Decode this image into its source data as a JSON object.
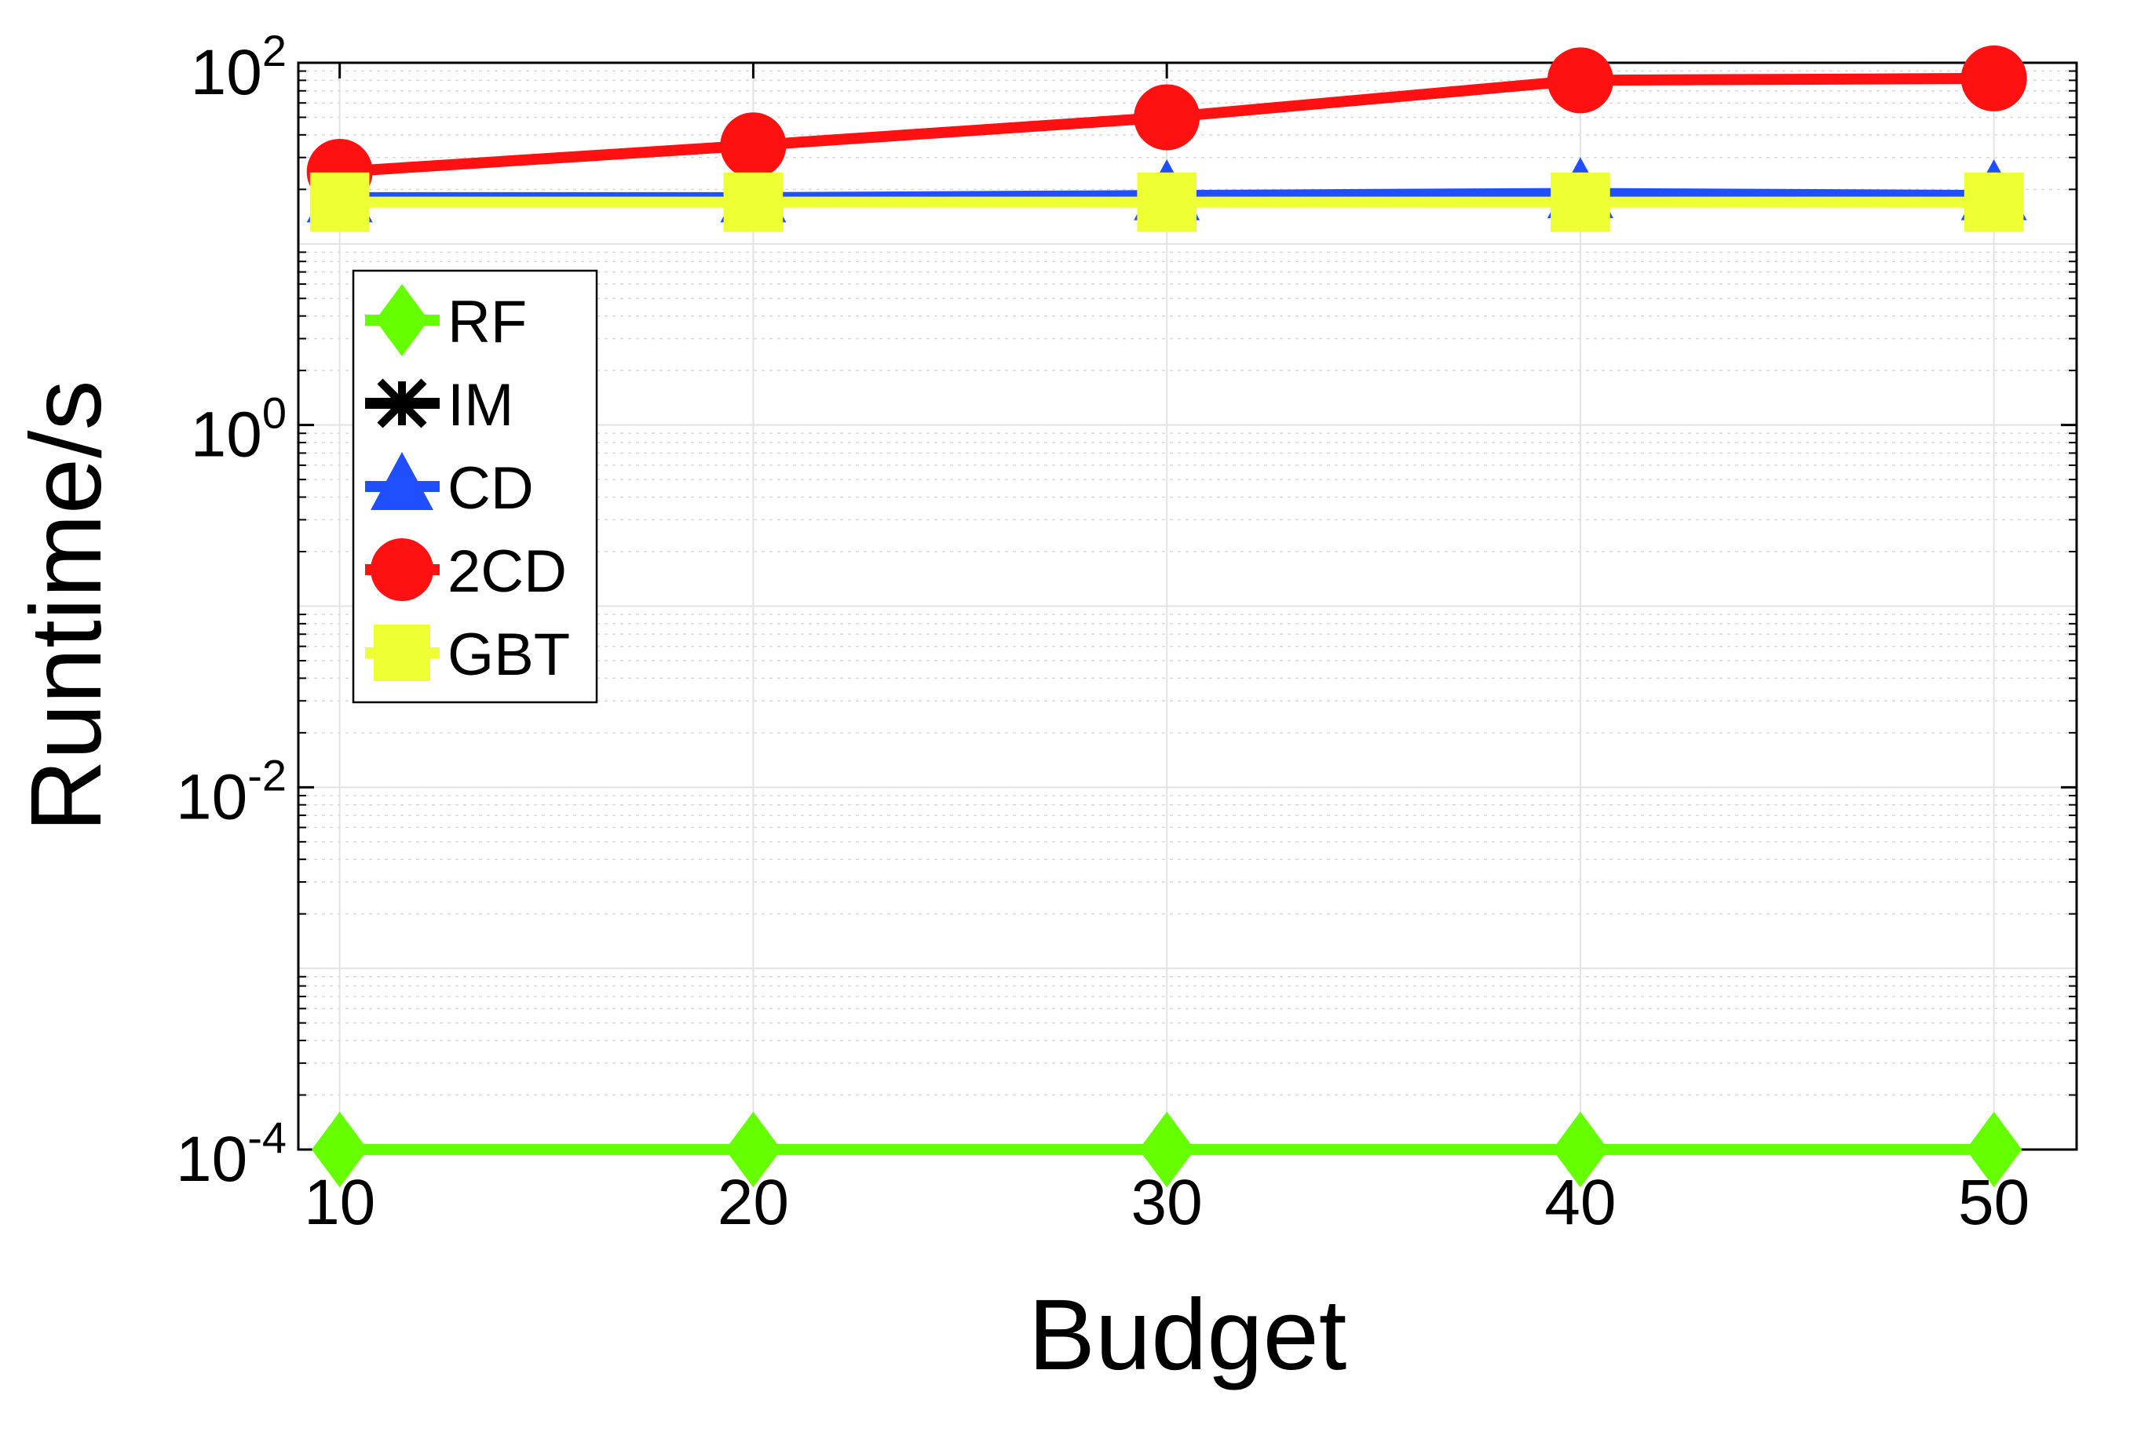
{
  "chart_data": {
    "type": "line",
    "xlabel": "Budget",
    "ylabel": "Runtime/s",
    "x": [
      10,
      20,
      30,
      40,
      50
    ],
    "xticks": [
      "10",
      "20",
      "30",
      "40",
      "50"
    ],
    "xlim": [
      9,
      52
    ],
    "yscale": "log",
    "ylim": [
      0.0001,
      100
    ],
    "yticks": [
      {
        "base": "10",
        "exp": "-4",
        "value": 0.0001
      },
      {
        "base": "10",
        "exp": "-2",
        "value": 0.01
      },
      {
        "base": "10",
        "exp": "0",
        "value": 1
      },
      {
        "base": "10",
        "exp": "2",
        "value": 100
      }
    ],
    "grid": true,
    "legend_position": "top-left",
    "series": [
      {
        "name": "RF",
        "color": "#66ff00",
        "marker": "diamond",
        "values": [
          0.0001,
          0.0001,
          0.0001,
          0.0001,
          0.0001
        ]
      },
      {
        "name": "IM",
        "color": "#000000",
        "marker": "x",
        "values": [
          null,
          null,
          null,
          null,
          null
        ]
      },
      {
        "name": "CD",
        "color": "#1f4fff",
        "marker": "triangle",
        "values": [
          18,
          18,
          18.5,
          19,
          18.5
        ]
      },
      {
        "name": "2CD",
        "color": "#ff1111",
        "marker": "circle",
        "values": [
          25,
          35,
          50,
          80,
          82
        ]
      },
      {
        "name": "GBT",
        "color": "#eeff33",
        "marker": "square",
        "values": [
          17,
          17,
          17,
          17,
          17
        ]
      }
    ]
  }
}
